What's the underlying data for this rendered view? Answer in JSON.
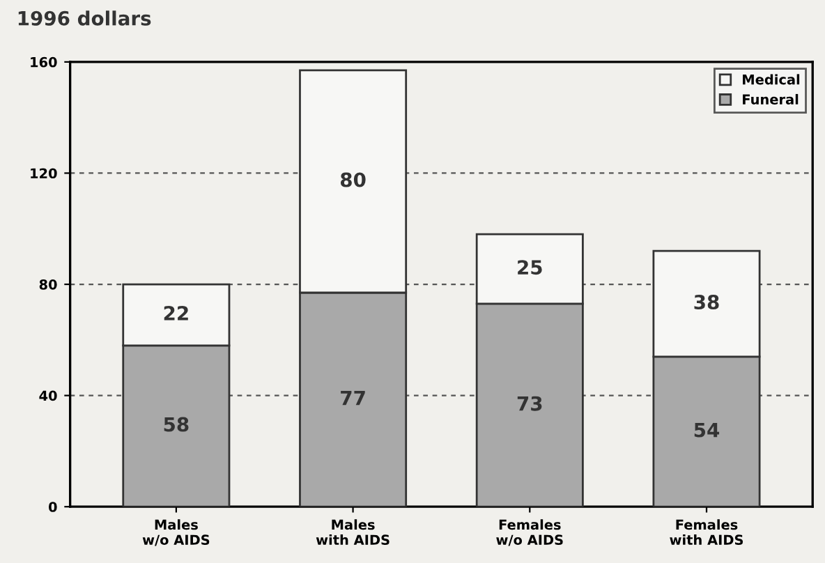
{
  "chart_data": {
    "type": "bar",
    "stacked": true,
    "ylabel": "1996 dollars",
    "categories": [
      "Males\nw/o AIDS",
      "Males\nwith AIDS",
      "Females\nw/o AIDS",
      "Females\nwith AIDS"
    ],
    "series": [
      {
        "name": "Funeral",
        "color": "#a9a9a9",
        "values": [
          58,
          77,
          73,
          54
        ]
      },
      {
        "name": "Medical",
        "color": "#f7f7f5",
        "values": [
          22,
          80,
          25,
          38
        ]
      }
    ],
    "ylim": [
      0,
      160
    ],
    "yticks": [
      0,
      40,
      80,
      120,
      160
    ],
    "grid": "y",
    "legend": "top right",
    "data_labels": true
  }
}
